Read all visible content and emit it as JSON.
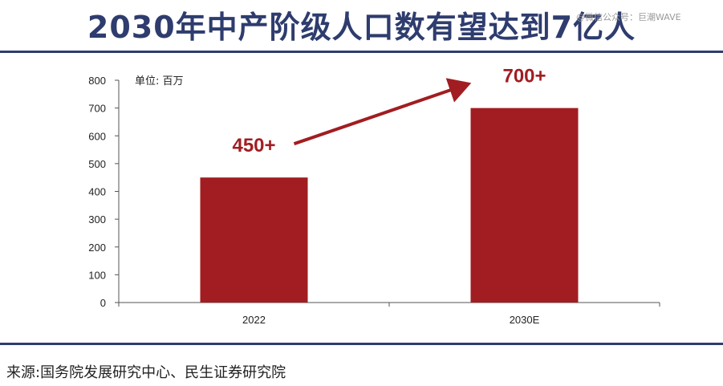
{
  "header": {
    "title": "2030年中产阶级人口数有望达到7亿人",
    "watermark": "@微信公众号：巨潮WAVE"
  },
  "footer": {
    "source": "来源:国务院发展研究中心、民生证券研究院"
  },
  "colors": {
    "bar": "#a11d21",
    "title": "#2e3c6e",
    "rule": "#2e3c6e",
    "arrow": "#a11d21"
  },
  "chart_data": {
    "type": "bar",
    "categories": [
      "2022",
      "2030E"
    ],
    "values": [
      450,
      700
    ],
    "data_labels": [
      "450+",
      "700+"
    ],
    "unit_label": "单位: 百万",
    "ylim": [
      0,
      800
    ],
    "yticks": [
      0,
      100,
      200,
      300,
      400,
      500,
      600,
      700,
      800
    ],
    "grid": false,
    "legend": "none",
    "annotation": "arrow from 2022 label rising to 2030E label"
  }
}
